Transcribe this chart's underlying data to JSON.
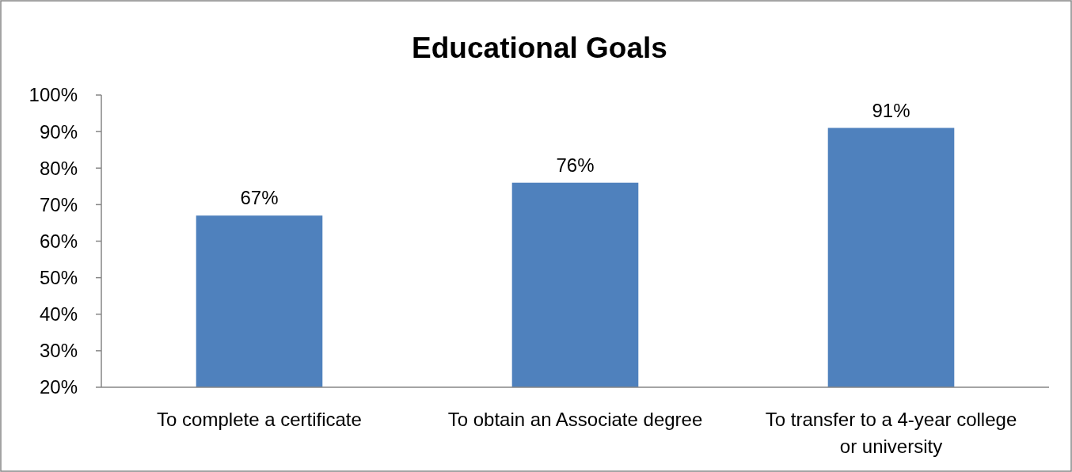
{
  "chart_data": {
    "type": "bar",
    "title": "Educational Goals",
    "categories": [
      "To complete a certificate",
      "To obtain an Associate degree",
      "To transfer to a 4-year college or university"
    ],
    "values": [
      67,
      76,
      91
    ],
    "color": "#4f81bd",
    "value_labels": [
      "67%",
      "76%",
      "91%"
    ],
    "ylim": [
      20,
      100
    ],
    "yticks": [
      {
        "value": 20,
        "label": "20%"
      },
      {
        "value": 30,
        "label": "30%"
      },
      {
        "value": 40,
        "label": "40%"
      },
      {
        "value": 50,
        "label": "50%"
      },
      {
        "value": 60,
        "label": "60%"
      },
      {
        "value": 70,
        "label": "70%"
      },
      {
        "value": 80,
        "label": "80%"
      },
      {
        "value": 90,
        "label": "90%"
      },
      {
        "value": 100,
        "label": "100%"
      }
    ],
    "grid": false
  }
}
